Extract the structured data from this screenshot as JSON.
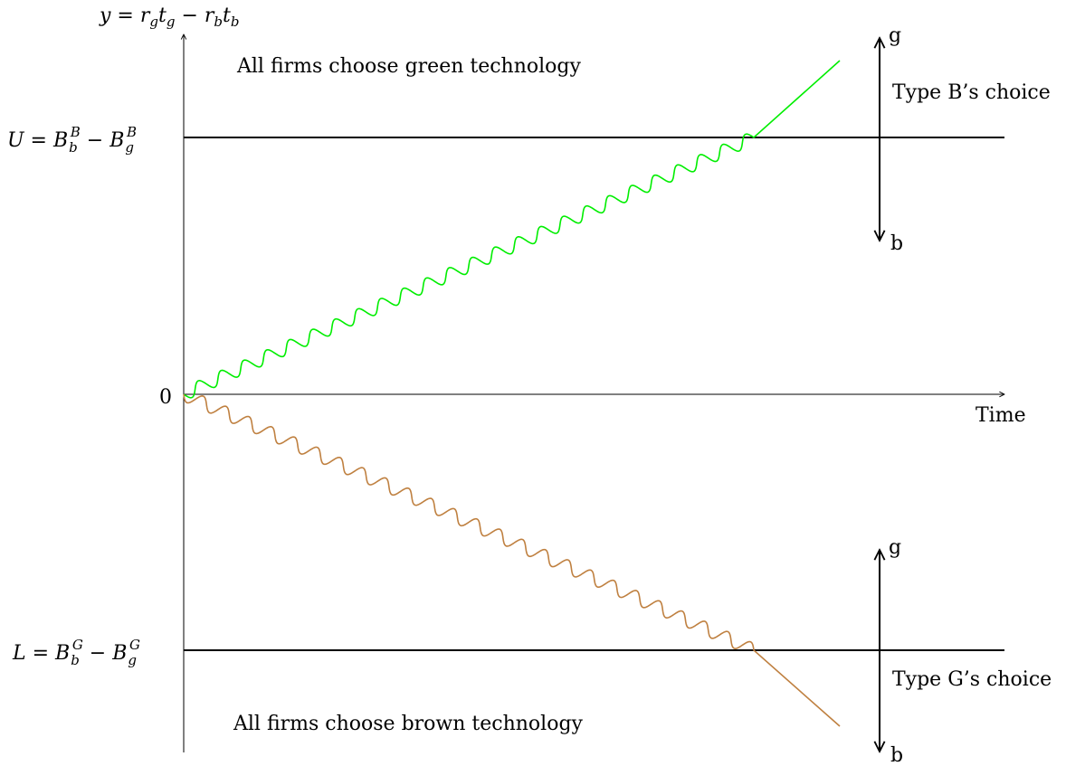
{
  "y_axis": {
    "label": {
      "y": "y",
      "eq": " = ",
      "r1": "r",
      "g1": "g",
      "t1": "t",
      "g2": "g",
      "minus": " − ",
      "r2": "r",
      "b1": "b",
      "t2": "t",
      "b2": "b"
    }
  },
  "x_axis": {
    "label": "Time"
  },
  "origin_label": "0",
  "upper_threshold": {
    "U": "U",
    "eq": " = ",
    "B1": "B",
    "sub1": "b",
    "sup1": "B",
    "minus": " − ",
    "B2": "B",
    "sub2": "g",
    "sup2": "B"
  },
  "lower_threshold": {
    "L": "L",
    "eq": " = ",
    "B1": "B",
    "sub1": "b",
    "sup1": "G",
    "minus": " − ",
    "B2": "B",
    "sub2": "g",
    "sup2": "G"
  },
  "region_texts": {
    "green": "All firms choose green technology",
    "brown": "All firms choose brown technology"
  },
  "type_b_choice": {
    "label": "Type B’s choice",
    "top": "g",
    "bottom": "b"
  },
  "type_g_choice": {
    "label": "Type G’s choice",
    "top": "g",
    "bottom": "b"
  },
  "colors": {
    "green_path": "#00ee00",
    "brown_path": "#bf8040",
    "axes": "#000000"
  }
}
